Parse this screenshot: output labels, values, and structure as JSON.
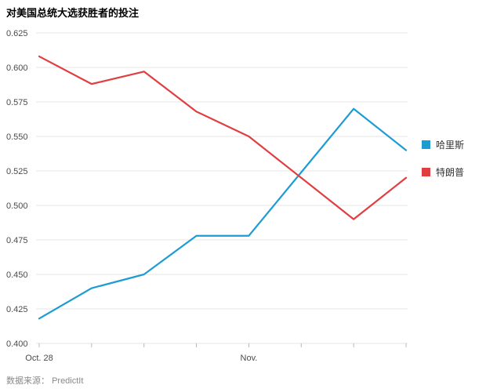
{
  "title": "对美国总统大选获胜者的投注",
  "footer": {
    "source_label": "数据来源：",
    "source_value": "PredictIt"
  },
  "chart_data": {
    "type": "line",
    "x_tick_labels": [
      {
        "index": 0,
        "label": "Oct. 28"
      },
      {
        "index": 4,
        "label": "Nov."
      }
    ],
    "series": [
      {
        "name": "哈里斯",
        "color": "#1d9cd3",
        "values": [
          0.418,
          0.44,
          0.45,
          0.478,
          0.478,
          0.524,
          0.57,
          0.54
        ]
      },
      {
        "name": "特朗普",
        "color": "#e03e41",
        "values": [
          0.608,
          0.588,
          0.597,
          0.568,
          0.55,
          0.52,
          0.49,
          0.52
        ]
      }
    ],
    "ylim": [
      0.4,
      0.625
    ],
    "y_ticks": [
      0.4,
      0.425,
      0.45,
      0.475,
      0.5,
      0.525,
      0.55,
      0.575,
      0.6,
      0.625
    ],
    "grid": "horizontal",
    "legend_position": "right"
  }
}
